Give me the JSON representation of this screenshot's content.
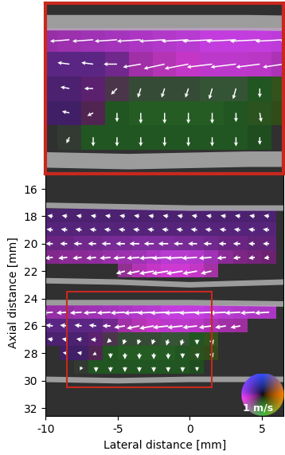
{
  "chart_data": {
    "type": "vector_flow",
    "x_label": "Lateral distance [mm]",
    "y_label": "Axial distance [mm]",
    "xlim": [
      -10,
      6.5
    ],
    "ylim": [
      32.6,
      14.5
    ],
    "xticks": [
      -10,
      -5,
      0,
      5
    ],
    "yticks": [
      16,
      18,
      20,
      22,
      24,
      26,
      28,
      30,
      32
    ],
    "x": [
      -9.5,
      -8.5,
      -7.5,
      -6.5,
      -5.5,
      -4.5,
      -3.5,
      -2.5,
      -1.5,
      -0.5,
      0.5,
      1.5,
      2.5,
      3.5,
      4.5,
      5.5
    ],
    "y": [
      18,
      19,
      20,
      21,
      22,
      23,
      24,
      25,
      26,
      27,
      28,
      29
    ],
    "u": [
      [
        -0.3,
        -0.3,
        -0.3,
        -0.3,
        -0.3,
        -0.3,
        -0.3,
        -0.3,
        -0.3,
        -0.3,
        -0.3,
        -0.3,
        -0.3,
        -0.3,
        -0.3,
        -0.3
      ],
      [
        -0.35,
        -0.35,
        -0.35,
        -0.35,
        -0.35,
        -0.35,
        -0.35,
        -0.35,
        -0.35,
        -0.35,
        -0.35,
        -0.35,
        -0.35,
        -0.35,
        -0.35,
        -0.35
      ],
      [
        -0.4,
        -0.4,
        -0.45,
        -0.45,
        -0.5,
        -0.5,
        -0.55,
        -0.55,
        -0.55,
        -0.5,
        -0.5,
        -0.45,
        -0.4,
        -0.4,
        -0.35,
        -0.35
      ],
      [
        -0.45,
        -0.5,
        -0.5,
        -0.55,
        -0.6,
        -0.65,
        -0.7,
        -0.8,
        -0.9,
        -0.9,
        -0.85,
        -0.7,
        -0.5,
        -0.4,
        -0.35,
        -0.3
      ],
      [
        null,
        null,
        null,
        null,
        null,
        -0.5,
        -0.7,
        -0.8,
        -0.9,
        -0.9,
        -0.8,
        -0.6,
        null,
        null,
        null,
        null
      ],
      [
        null,
        null,
        null,
        null,
        null,
        null,
        null,
        null,
        null,
        null,
        null,
        null,
        null,
        null,
        null,
        null
      ],
      [
        null,
        null,
        null,
        null,
        null,
        null,
        null,
        null,
        null,
        null,
        null,
        null,
        null,
        null,
        null,
        null
      ],
      [
        -0.6,
        -0.6,
        -0.65,
        -0.7,
        -0.75,
        -0.8,
        -0.85,
        -0.9,
        -1.0,
        -1.0,
        -1.0,
        -0.95,
        -0.9,
        -0.85,
        -0.8,
        -0.8
      ],
      [
        -0.4,
        -0.4,
        -0.4,
        -0.4,
        -0.45,
        -0.6,
        -0.7,
        -0.8,
        -0.85,
        -0.85,
        -0.8,
        -0.7,
        -0.6,
        -0.55,
        null,
        null
      ],
      [
        -0.3,
        -0.3,
        -0.3,
        -0.3,
        -0.2,
        -0.1,
        -0.1,
        -0.1,
        -0.1,
        -0.1,
        0.0,
        0.1,
        null,
        null,
        null,
        null
      ],
      [
        null,
        -0.25,
        -0.25,
        -0.2,
        0.0,
        0.0,
        0.0,
        0.0,
        0.0,
        0.0,
        0.05,
        0.1,
        null,
        null,
        null,
        null
      ],
      [
        null,
        null,
        -0.1,
        0.0,
        0.0,
        0.0,
        0.0,
        0.0,
        0.0,
        0.0,
        0.0,
        null,
        null,
        null,
        null,
        null
      ]
    ],
    "v": [
      [
        -0.05,
        -0.05,
        -0.05,
        -0.05,
        -0.05,
        -0.05,
        -0.05,
        -0.05,
        -0.05,
        -0.05,
        -0.05,
        -0.05,
        -0.05,
        -0.05,
        -0.05,
        -0.05
      ],
      [
        -0.05,
        -0.05,
        -0.05,
        -0.05,
        -0.05,
        -0.05,
        -0.05,
        -0.05,
        -0.05,
        -0.05,
        -0.05,
        -0.05,
        -0.05,
        -0.05,
        -0.05,
        -0.05
      ],
      [
        0.0,
        0.0,
        0.0,
        0.0,
        0.0,
        0.0,
        0.0,
        0.0,
        0.0,
        0.0,
        0.0,
        0.0,
        0.0,
        0.0,
        0.0,
        0.0
      ],
      [
        0.05,
        0.05,
        0.05,
        0.05,
        0.05,
        0.05,
        0.05,
        0.05,
        0.05,
        0.05,
        0.05,
        0.05,
        0.05,
        0.05,
        0.05,
        0.05
      ],
      [
        null,
        null,
        null,
        null,
        null,
        0.15,
        0.15,
        0.15,
        0.15,
        0.15,
        0.15,
        0.15,
        null,
        null,
        null,
        null
      ],
      [
        null,
        null,
        null,
        null,
        null,
        null,
        null,
        null,
        null,
        null,
        null,
        null,
        null,
        null,
        null,
        null
      ],
      [
        null,
        null,
        null,
        null,
        null,
        null,
        null,
        null,
        null,
        null,
        null,
        null,
        null,
        null,
        null,
        null
      ],
      [
        0.05,
        0.05,
        0.05,
        0.05,
        0.05,
        0.05,
        0.05,
        0.05,
        0.05,
        0.05,
        0.05,
        0.05,
        0.05,
        0.05,
        0.05,
        0.05
      ],
      [
        -0.05,
        -0.05,
        -0.05,
        -0.05,
        0.0,
        0.1,
        0.15,
        0.15,
        0.1,
        0.1,
        0.1,
        0.1,
        0.1,
        0.1,
        null,
        null
      ],
      [
        -0.05,
        -0.05,
        -0.05,
        0.0,
        0.2,
        0.3,
        0.3,
        0.3,
        0.35,
        0.35,
        0.3,
        0.3,
        null,
        null,
        null,
        null
      ],
      [
        null,
        -0.05,
        -0.05,
        0.1,
        0.3,
        0.35,
        0.35,
        0.35,
        0.35,
        0.3,
        0.3,
        0.25,
        null,
        null,
        null,
        null
      ],
      [
        null,
        null,
        0.2,
        0.3,
        0.3,
        0.3,
        0.3,
        0.3,
        0.3,
        0.3,
        0.25,
        null,
        null,
        null,
        null,
        null
      ]
    ],
    "walls": [
      {
        "x": [
          -10,
          -5,
          0,
          6.5
        ],
        "y": [
          17.2,
          17.3,
          17.4,
          17.4
        ]
      },
      {
        "x": [
          -10,
          -5,
          0,
          6.5
        ],
        "y": [
          22.7,
          22.8,
          23.0,
          22.8
        ]
      },
      {
        "x": [
          -10,
          -5,
          0,
          6.5
        ],
        "y": [
          24.3,
          24.3,
          24.3,
          24.4
        ]
      },
      {
        "x": [
          -10,
          -5,
          0,
          6.5
        ],
        "y": [
          29.9,
          30.0,
          29.9,
          29.9
        ]
      }
    ],
    "zoom_box": {
      "xlim": [
        -8.5,
        1.5
      ],
      "ylim": [
        30.5,
        23.5
      ]
    },
    "colorwheel": {
      "max": 1,
      "label": "1 m/s"
    }
  }
}
